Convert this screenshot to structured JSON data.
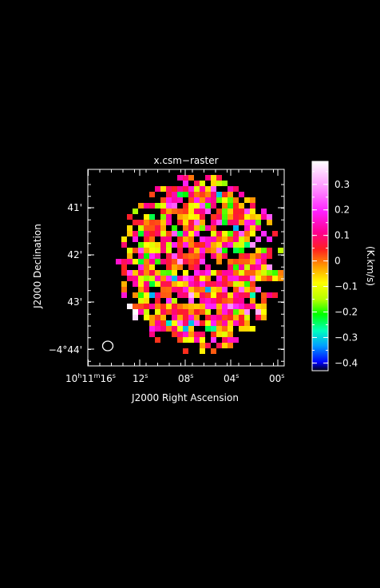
{
  "chart_data": {
    "type": "heatmap",
    "title": "x.csm−raster",
    "xlabel": "J2000 Right Ascension",
    "ylabel": "J2000 Declination",
    "x_ticks": [
      {
        "h": "10",
        "m": "11",
        "s": "16",
        "label": "16"
      },
      {
        "label": "12"
      },
      {
        "label": "08"
      },
      {
        "label": "04"
      },
      {
        "label": "00"
      }
    ],
    "y_ticks": [
      "41'",
      "42'",
      "43'",
      "−4°44'"
    ],
    "colorbar": {
      "label": "(K.km/s)",
      "ticks": [
        "0.3",
        "0.2",
        "0.1",
        "0",
        "−0.1",
        "−0.2",
        "−0.3",
        "−0.4"
      ],
      "tick_values": [
        0.3,
        0.2,
        0.1,
        0,
        -0.1,
        -0.2,
        -0.3,
        -0.4
      ],
      "range": [
        -0.43,
        0.39
      ]
    },
    "beam_marker": "ellipse"
  }
}
